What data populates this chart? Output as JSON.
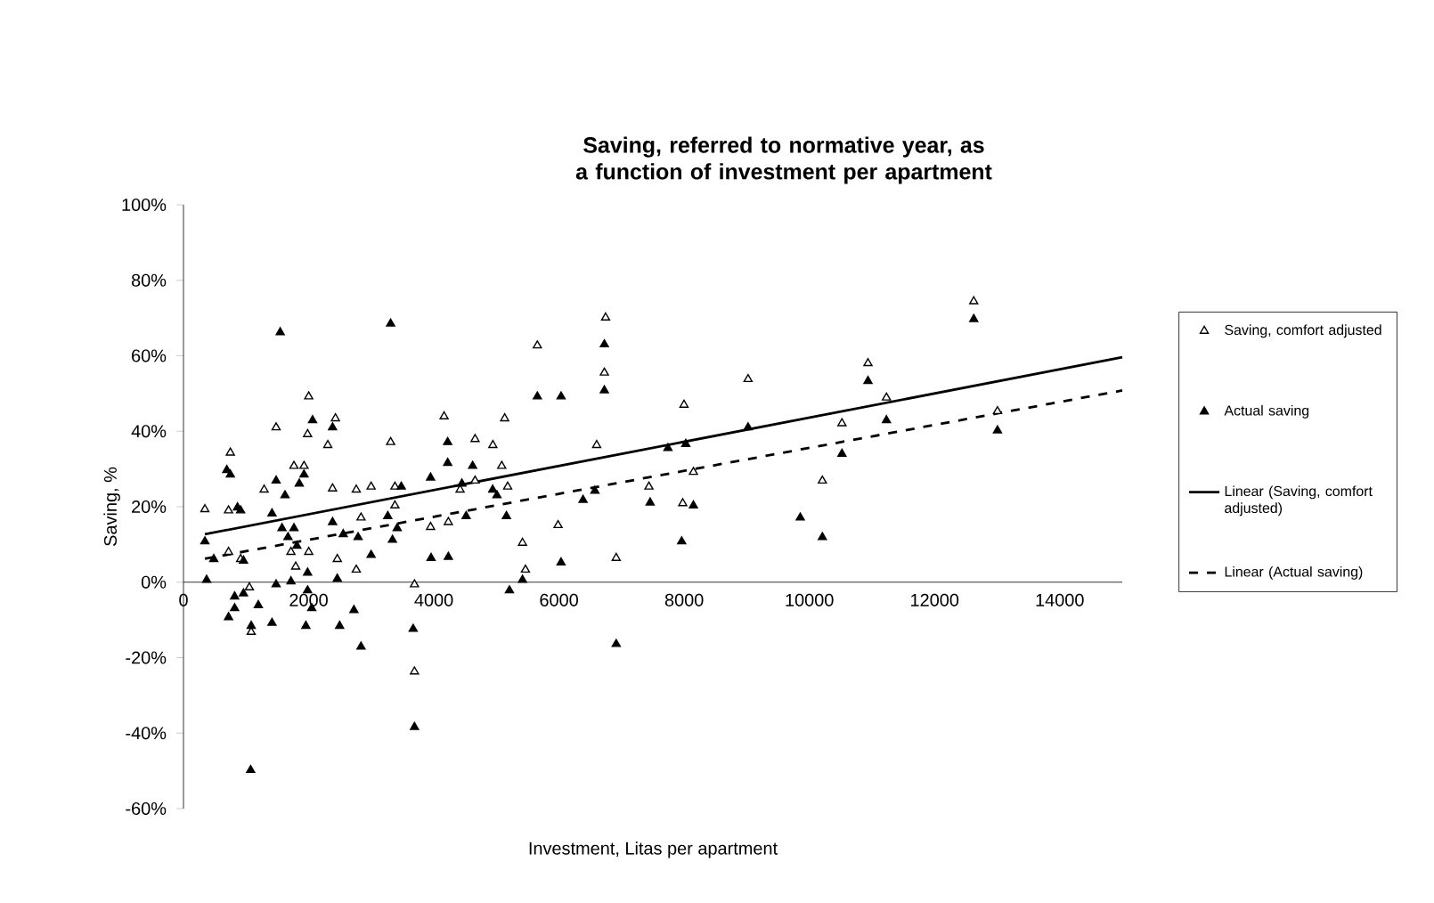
{
  "chart_data": {
    "type": "scatter",
    "title": "Saving, referred to normative year, as a function of investment per apartment",
    "xlabel": "Investment, Litas per apartment",
    "ylabel": "Saving, %",
    "xlim": [
      0,
      15000
    ],
    "ylim": [
      -60,
      100
    ],
    "xticks": [
      0,
      2000,
      4000,
      6000,
      8000,
      10000,
      12000,
      14000
    ],
    "yticks": [
      {
        "value": -60,
        "label": "-60%"
      },
      {
        "value": -40,
        "label": "-40%"
      },
      {
        "value": -20,
        "label": "-20%"
      },
      {
        "value": 0,
        "label": "0%"
      },
      {
        "value": 20,
        "label": "20%"
      },
      {
        "value": 40,
        "label": "40%"
      },
      {
        "value": 60,
        "label": "60%"
      },
      {
        "value": 80,
        "label": "80%"
      },
      {
        "value": 100,
        "label": "100%"
      }
    ],
    "grid": false,
    "legend": "right",
    "series": [
      {
        "name": "Saving, comfort adjusted",
        "marker": "triangle",
        "color": "#000000",
        "x": [
          342,
          749,
          720,
          720,
          913,
          1053,
          1082,
          1289,
          1480,
          1765,
          1926,
          2001,
          1983,
          2001,
          1717,
          1793,
          2428,
          2306,
          2382,
          2458,
          2761,
          2998,
          2837,
          2761,
          3310,
          3379,
          3379,
          3691,
          3691,
          4164,
          3948,
          4232,
          4420,
          4659,
          4659,
          4943,
          5132,
          5085,
          5180,
          5417,
          5464,
          5654,
          5985,
          6745,
          6725,
          6602,
          6914,
          7437,
          7977,
          7997,
          8148,
          9021,
          10208,
          10521,
          10937,
          11232,
          12627,
          13006
        ],
        "values": [
          19.3,
          34.3,
          19.0,
          8.0,
          6.1,
          -1.4,
          -13.2,
          24.5,
          41.0,
          30.8,
          30.8,
          49.2,
          39.2,
          8.0,
          8.0,
          4.1,
          43.4,
          36.3,
          24.8,
          6.1,
          24.5,
          25.3,
          17.1,
          3.3,
          37.1,
          20.3,
          25.3,
          -0.6,
          -23.7,
          43.9,
          14.6,
          15.9,
          24.5,
          37.9,
          26.9,
          36.3,
          43.4,
          30.8,
          25.3,
          10.4,
          3.3,
          62.7,
          15.1,
          70.1,
          55.5,
          36.3,
          6.4,
          25.3,
          20.9,
          47.0,
          29.2,
          53.8,
          26.9,
          42.1,
          58.0,
          48.9,
          74.4,
          45.3
        ]
      },
      {
        "name": "Actual saving",
        "marker": "triangle",
        "color": "#000000",
        "x": [
          342,
          370,
          484,
          692,
          749,
          863,
          913,
          959,
          817,
          720,
          817,
          959,
          1196,
          1082,
          1073,
          1414,
          1414,
          1480,
          1546,
          1574,
          1622,
          1670,
          1480,
          1717,
          1765,
          1812,
          1850,
          1926,
          1983,
          1983,
          1955,
          2063,
          2049,
          2382,
          2458,
          2382,
          2495,
          2553,
          2723,
          2790,
          2837,
          2998,
          3310,
          3264,
          3339,
          3415,
          3480,
          3670,
          3691,
          3956,
          3948,
          4221,
          4221,
          4232,
          4448,
          4516,
          4620,
          4941,
          5008,
          5160,
          5208,
          5417,
          5654,
          6033,
          6033,
          6725,
          6725,
          6384,
          6574,
          6914,
          7456,
          7741,
          8026,
          7960,
          8148,
          9021,
          9855,
          10208,
          10521,
          10937,
          11232,
          12627,
          13006
        ],
        "values": [
          10.8,
          0.6,
          6.1,
          29.7,
          28.5,
          19.8,
          19.0,
          5.7,
          -3.8,
          -9.3,
          -6.9,
          -3.0,
          -6.1,
          -11.6,
          -49.8,
          18.2,
          -10.8,
          26.9,
          66.2,
          14.3,
          23.0,
          11.9,
          -0.6,
          0.2,
          14.3,
          9.6,
          26.1,
          28.5,
          2.5,
          -2.2,
          -11.6,
          42.9,
          -6.9,
          41.0,
          0.9,
          15.9,
          -11.6,
          12.7,
          -7.4,
          11.9,
          -17.1,
          7.2,
          68.5,
          17.5,
          11.2,
          14.3,
          25.3,
          -12.4,
          -38.4,
          6.4,
          27.7,
          31.6,
          37.1,
          6.7,
          26.1,
          17.5,
          30.8,
          24.5,
          23.0,
          17.5,
          -2.2,
          0.6,
          49.2,
          49.2,
          5.2,
          63.0,
          50.8,
          21.8,
          24.2,
          -16.4,
          21.1,
          35.5,
          36.6,
          10.8,
          20.3,
          41.0,
          17.1,
          11.9,
          34.0,
          53.3,
          42.9,
          69.7,
          40.2
        ]
      },
      {
        "name": "Linear (Saving, comfort adjusted)",
        "type": "line",
        "line_style": "solid",
        "color": "#000000",
        "x": [
          342,
          15000
        ],
        "values": [
          12.7,
          59.6
        ]
      },
      {
        "name": "Linear (Actual saving)",
        "type": "line",
        "line_style": "dashed",
        "color": "#000000",
        "x": [
          342,
          15000
        ],
        "values": [
          6.2,
          50.8
        ]
      }
    ]
  }
}
